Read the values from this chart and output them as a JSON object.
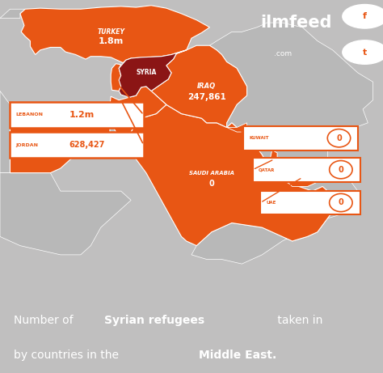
{
  "bg_color": "#c0bfbf",
  "map_bg": "#c0bfbf",
  "orange": "#e85614",
  "dark_red": "#8B1515",
  "white": "#ffffff",
  "gray_country": "#b0b0b0",
  "logo_orange": "#e85614",
  "title_parts_line1": [
    "Number of ",
    "Syrian refugees",
    " taken in"
  ],
  "title_parts_line2": [
    "by countries in the ",
    "Middle East."
  ],
  "label_font_size": 11,
  "map_xlim": [
    24,
    62
  ],
  "map_ylim": [
    10,
    43
  ]
}
